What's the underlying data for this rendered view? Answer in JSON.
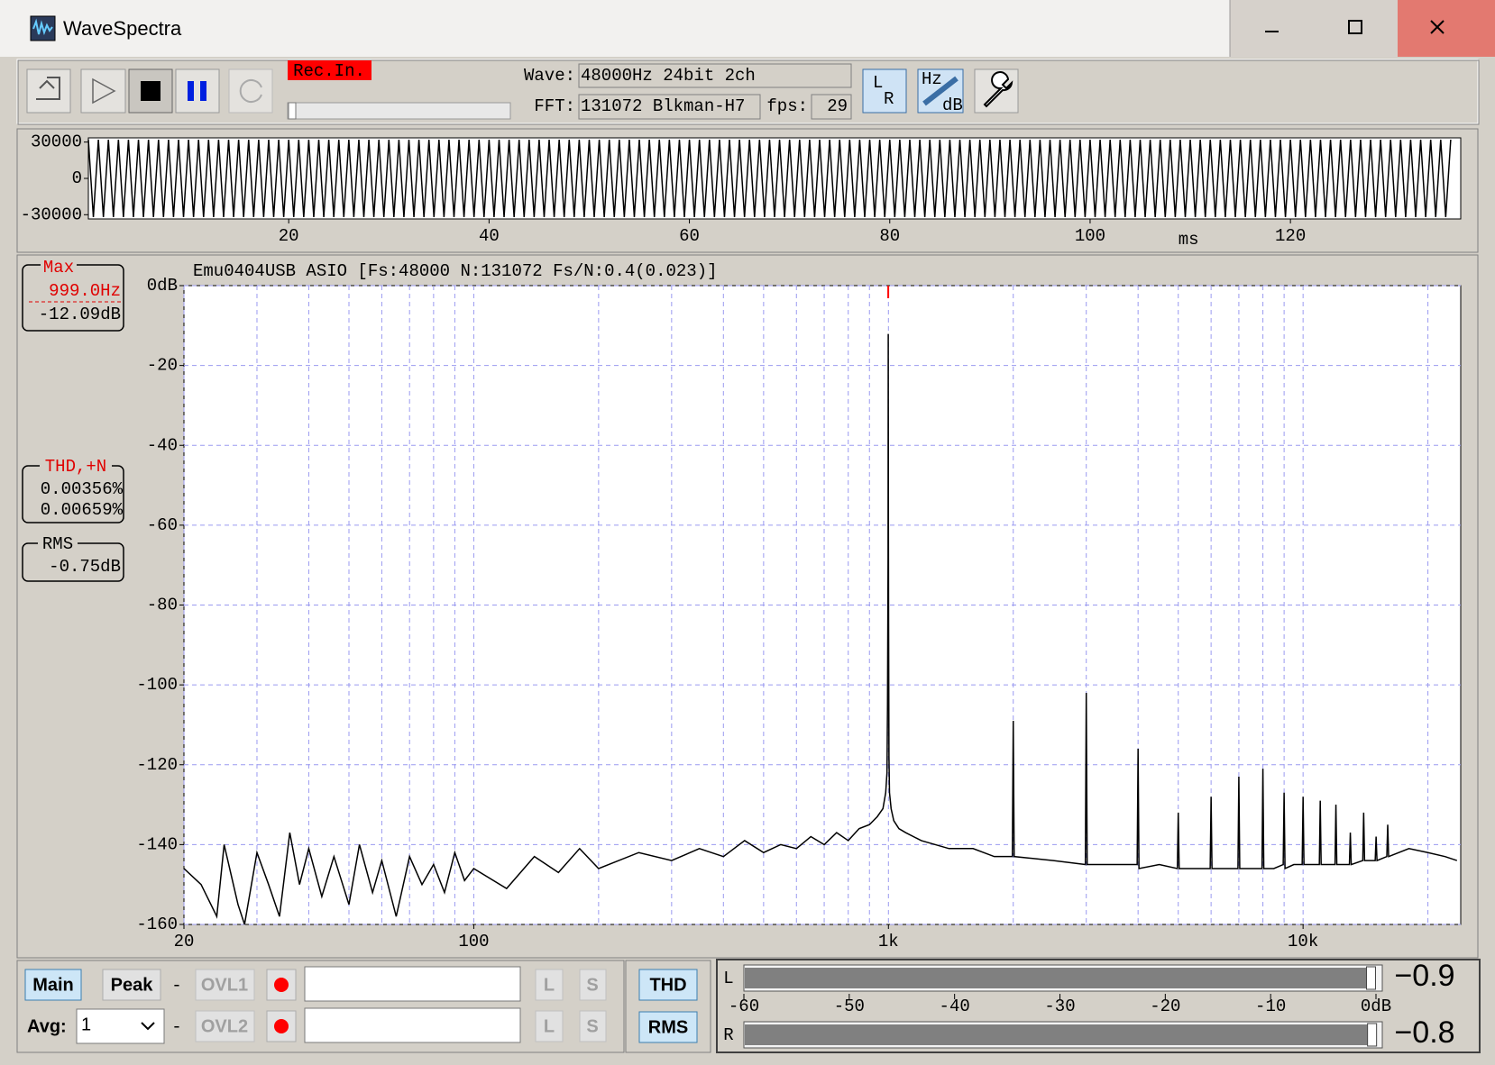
{
  "window": {
    "title": "WaveSpectra"
  },
  "toolbar": {
    "rec": "Rec.In.",
    "wave_label": "Wave:",
    "wave": "48000Hz 24bit 2ch",
    "fft_label": "FFT:",
    "fft": "131072 Blkman-H7",
    "fps_label": "fps:",
    "fps": "29",
    "lr_icon": [
      "L",
      "R"
    ],
    "hzdb_icon": [
      "Hz",
      "dB"
    ]
  },
  "readouts": {
    "max": {
      "label": "Max",
      "freq": "999.0Hz",
      "level": "-12.09dB"
    },
    "thd": {
      "label": "THD,+N",
      "values": [
        "0.00356%",
        "0.00659%"
      ]
    },
    "rms": {
      "label": "RMS",
      "value": "-0.75dB"
    }
  },
  "controls": {
    "main": "Main",
    "peak": "Peak",
    "dash": "-",
    "ovl1": "OVL1",
    "ovl2": "OVL2",
    "l": "L",
    "s": "S",
    "avg_label": "Avg:",
    "avg": "1",
    "thd": "THD",
    "rms": "RMS"
  },
  "meter": {
    "xlim": [
      -60,
      0
    ],
    "xticks": [
      -60,
      -50,
      -40,
      -30,
      -20,
      -10,
      {
        "value": 0,
        "label": "0dB"
      }
    ],
    "channels": [
      {
        "name": "L",
        "value": -0.9,
        "label": "−0.9"
      },
      {
        "name": "R",
        "value": -0.8,
        "label": "−0.8"
      }
    ]
  },
  "chart_data": [
    {
      "type": "line",
      "xlabel": "ms",
      "xlim": [
        0,
        137
      ],
      "ylim": [
        -33500,
        33500
      ],
      "yticks": [
        30000,
        0,
        -30000
      ],
      "xticks": [
        20,
        40,
        60,
        80,
        100,
        120
      ],
      "grid": false,
      "color": "#000000",
      "x": [
        0,
        0.5,
        1,
        1.5,
        2,
        2.5,
        3,
        3.5,
        4,
        4.5,
        5,
        5.5,
        6,
        6.5,
        7,
        7.5,
        8,
        8.5,
        9,
        9.5,
        10,
        10.5,
        11,
        11.5,
        12,
        12.5,
        13,
        13.5,
        14,
        14.5,
        15,
        15.5,
        16,
        16.5,
        17,
        17.5,
        18,
        18.5,
        19,
        19.5,
        20,
        20.5,
        21,
        21.5,
        22,
        22.5,
        23,
        23.5,
        24,
        24.5,
        25,
        25.5,
        26,
        26.5,
        27,
        27.5,
        28,
        28.5,
        29,
        29.5,
        30,
        30.5,
        31,
        31.5,
        32,
        32.5,
        33,
        33.5,
        34,
        34.5,
        35,
        35.5,
        36,
        36.5,
        37,
        37.5,
        38,
        38.5,
        39,
        39.5,
        40,
        40.5,
        41,
        41.5,
        42,
        42.5,
        43,
        43.5,
        44,
        44.5,
        45,
        45.5,
        46,
        46.5,
        47,
        47.5,
        48,
        48.5,
        49,
        49.5,
        50,
        50.5,
        51,
        51.5,
        52,
        52.5,
        53,
        53.5,
        54,
        54.5,
        55,
        55.5,
        56,
        56.5,
        57,
        57.5,
        58,
        58.5,
        59,
        59.5,
        60,
        60.5,
        61,
        61.5,
        62,
        62.5,
        63,
        63.5,
        64,
        64.5,
        65,
        65.5,
        66,
        66.5,
        67,
        67.5,
        68,
        68.5,
        69,
        69.5,
        70,
        70.5,
        71,
        71.5,
        72,
        72.5,
        73,
        73.5,
        74,
        74.5,
        75,
        75.5,
        76,
        76.5,
        77,
        77.5,
        78,
        78.5,
        79,
        79.5,
        80,
        80.5,
        81,
        81.5,
        82,
        82.5,
        83,
        83.5,
        84,
        84.5,
        85,
        85.5,
        86,
        86.5,
        87,
        87.5,
        88,
        88.5,
        89,
        89.5,
        90,
        90.5,
        91,
        91.5,
        92,
        92.5,
        93,
        93.5,
        94,
        94.5,
        95,
        95.5,
        96,
        96.5,
        97,
        97.5,
        98,
        98.5,
        99,
        99.5,
        100,
        100.5,
        101,
        101.5,
        102,
        102.5,
        103,
        103.5,
        104,
        104.5,
        105,
        105.5,
        106,
        106.5,
        107,
        107.5,
        108,
        108.5,
        109,
        109.5,
        110,
        110.5,
        111,
        111.5,
        112,
        112.5,
        113,
        113.5,
        114,
        114.5,
        115,
        115.5,
        116,
        116.5,
        117,
        117.5,
        118,
        118.5,
        119,
        119.5,
        120,
        120.5,
        121,
        121.5,
        122,
        122.5,
        123,
        123.5,
        124,
        124.5,
        125,
        125.5,
        126,
        126.5,
        127,
        127.5,
        128,
        128.5,
        129,
        129.5,
        130,
        130.5,
        131,
        131.5,
        132,
        132.5,
        133,
        133.5,
        134,
        134.5,
        135,
        135.5,
        136
      ],
      "values": [
        32000,
        -32000,
        32000,
        -32000,
        32000,
        -32000,
        32000,
        -32000,
        32000,
        -32000,
        32000,
        -32000,
        32000,
        -32000,
        32000,
        -32000,
        32000,
        -32000,
        32000,
        -32000,
        32000,
        -32000,
        32000,
        -32000,
        32000,
        -32000,
        32000,
        -32000,
        32000,
        -32000,
        32000,
        -32000,
        32000,
        -32000,
        32000,
        -32000,
        32000,
        -32000,
        32000,
        -32000,
        32000,
        -32000,
        32000,
        -32000,
        32000,
        -32000,
        32000,
        -32000,
        32000,
        -32000,
        32000,
        -32000,
        32000,
        -32000,
        32000,
        -32000,
        32000,
        -32000,
        32000,
        -32000,
        32000,
        -32000,
        32000,
        -32000,
        32000,
        -32000,
        32000,
        -32000,
        32000,
        -32000,
        32000,
        -32000,
        32000,
        -32000,
        32000,
        -32000,
        32000,
        -32000,
        32000,
        -32000,
        32000,
        -32000,
        32000,
        -32000,
        32000,
        -32000,
        32000,
        -32000,
        32000,
        -32000,
        32000,
        -32000,
        32000,
        -32000,
        32000,
        -32000,
        32000,
        -32000,
        32000,
        -32000,
        32000,
        -32000,
        32000,
        -32000,
        32000,
        -32000,
        32000,
        -32000,
        32000,
        -32000,
        32000,
        -32000,
        32000,
        -32000,
        32000,
        -32000,
        32000,
        -32000,
        32000,
        -32000,
        32000,
        -32000,
        32000,
        -32000,
        32000,
        -32000,
        32000,
        -32000,
        32000,
        -32000,
        32000,
        -32000,
        32000,
        -32000,
        32000,
        -32000,
        32000,
        -32000,
        32000,
        -32000,
        32000,
        -32000,
        32000,
        -32000,
        32000,
        -32000,
        32000,
        -32000,
        32000,
        -32000,
        32000,
        -32000,
        32000,
        -32000,
        32000,
        -32000,
        32000,
        -32000,
        32000,
        -32000,
        32000,
        -32000,
        32000,
        -32000,
        32000,
        -32000,
        32000,
        -32000,
        32000,
        -32000,
        32000,
        -32000,
        32000,
        -32000,
        32000,
        -32000,
        32000,
        -32000,
        32000,
        -32000,
        32000,
        -32000,
        32000,
        -32000,
        32000,
        -32000,
        32000,
        -32000,
        32000,
        -32000,
        32000,
        -32000,
        32000,
        -32000,
        32000,
        -32000,
        32000,
        -32000,
        32000,
        -32000,
        32000,
        -32000,
        32000,
        -32000,
        32000,
        -32000,
        32000,
        -32000,
        32000,
        -32000,
        32000,
        -32000,
        32000,
        -32000,
        32000,
        -32000,
        32000,
        -32000,
        32000,
        -32000,
        32000,
        -32000,
        32000,
        -32000,
        32000,
        -32000,
        32000,
        -32000,
        32000,
        -32000,
        32000,
        -32000,
        32000,
        -32000,
        32000,
        -32000,
        32000,
        -32000,
        32000,
        -32000,
        32000,
        -32000,
        32000,
        -32000,
        32000,
        -32000,
        32000,
        -32000,
        32000,
        -32000,
        32000,
        -32000,
        32000,
        -32000,
        32000,
        -32000,
        32000,
        -32000,
        32000,
        -32000,
        32000,
        -32000,
        32000,
        -32000,
        32000,
        -32000,
        32000,
        -32000,
        32000,
        -32000,
        32000,
        -32000,
        32000
      ]
    },
    {
      "type": "line",
      "title": "Emu0404USB ASIO   [Fs:48000 N:131072 Fs/N:0.4(0.023)]",
      "xlog": true,
      "xlim": [
        20,
        24000
      ],
      "ylim": [
        -160,
        0
      ],
      "yticks": [
        {
          "value": 0,
          "label": "0dB"
        },
        -20,
        -40,
        -60,
        -80,
        -100,
        -120,
        -140,
        -160
      ],
      "xticks": [
        20,
        100,
        {
          "value": 1000,
          "label": "1k"
        },
        {
          "value": 10000,
          "label": "10k"
        }
      ],
      "xgrid": [
        30,
        40,
        50,
        60,
        70,
        80,
        90,
        200,
        300,
        400,
        500,
        600,
        700,
        800,
        900,
        2000,
        3000,
        4000,
        5000,
        6000,
        7000,
        8000,
        9000,
        20000
      ],
      "grid": true,
      "color": "#000000",
      "x": [
        20,
        22,
        24,
        25,
        27,
        28,
        30,
        32,
        34,
        36,
        38,
        40,
        43,
        46,
        50,
        53,
        57,
        60,
        65,
        70,
        75,
        80,
        85,
        90,
        95,
        100,
        120,
        140,
        160,
        180,
        200,
        250,
        300,
        350,
        400,
        450,
        500,
        550,
        600,
        650,
        700,
        750,
        800,
        850,
        900,
        940,
        970,
        985,
        992,
        995,
        997,
        998,
        999,
        1000,
        1001,
        1003,
        1006,
        1015,
        1030,
        1060,
        1100,
        1200,
        1400,
        1600,
        1800,
        1990,
        2000,
        2010,
        2500,
        2985,
        3000,
        3015,
        3500,
        3980,
        4000,
        4020,
        4500,
        4975,
        5000,
        5025,
        5500,
        5970,
        6000,
        6030,
        6500,
        6965,
        7000,
        7035,
        7500,
        7960,
        8000,
        8040,
        8500,
        8955,
        9000,
        9045,
        9500,
        9950,
        10000,
        10050,
        10945,
        11000,
        11055,
        11940,
        12000,
        12060,
        12935,
        13000,
        13065,
        13930,
        14000,
        14070,
        14925,
        15000,
        15075,
        15920,
        16000,
        16080,
        18000,
        20000,
        22000,
        23500
      ],
      "values": [
        -146,
        -150,
        -158,
        -140,
        -155,
        -160,
        -142,
        -150,
        -158,
        -137,
        -150,
        -141,
        -153,
        -143,
        -155,
        -140,
        -152,
        -144,
        -158,
        -143,
        -150,
        -145,
        -152,
        -142,
        -149,
        -146,
        -151,
        -143,
        -147,
        -141,
        -146,
        -142,
        -144,
        -141,
        -143,
        -139,
        -142,
        -140,
        -141,
        -138,
        -140,
        -137,
        -139,
        -136,
        -135,
        -133,
        -131,
        -127,
        -122,
        -105,
        -80,
        -68,
        -12.09,
        -60,
        -85,
        -118,
        -127,
        -131,
        -134,
        -136,
        -137,
        -139,
        -141,
        -141,
        -143,
        -143,
        -109,
        -143,
        -144,
        -145,
        -102,
        -145,
        -145,
        -145,
        -116,
        -146,
        -145,
        -146,
        -132,
        -146,
        -146,
        -146,
        -128,
        -146,
        -146,
        -146,
        -123,
        -146,
        -146,
        -146,
        -121,
        -146,
        -146,
        -145,
        -127,
        -146,
        -145,
        -145,
        -128,
        -145,
        -145,
        -129,
        -145,
        -145,
        -130,
        -145,
        -145,
        -137,
        -145,
        -144,
        -132,
        -144,
        -144,
        -138,
        -144,
        -143,
        -135,
        -143,
        -141,
        -142,
        -143,
        -144
      ]
    }
  ]
}
